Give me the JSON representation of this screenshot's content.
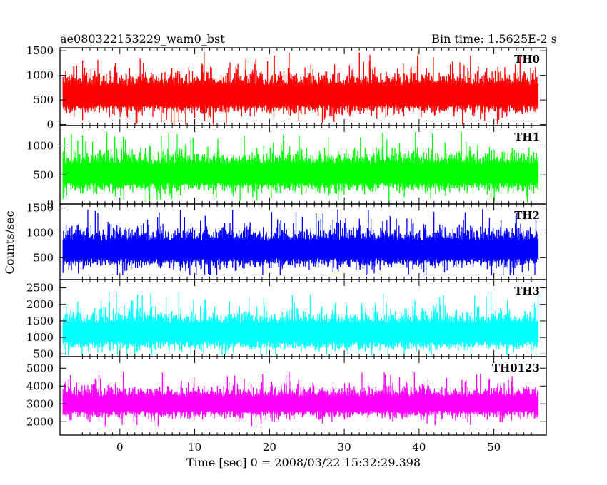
{
  "header": {
    "title": "ae080322153229_wam0_bst",
    "bin_time": "Bin time: 1.5625E-2 s"
  },
  "chart_data": {
    "type": "line",
    "xlabel": "Time [sec] 0 = 2008/03/22 15:32:29.398",
    "ylabel": "Counts/sec",
    "xlim": [
      -8,
      57
    ],
    "xticks": [
      0,
      10,
      20,
      30,
      40,
      50
    ],
    "x_range_data": [
      -7.6,
      55.9
    ],
    "bin_time_s": 0.015625,
    "panels": [
      {
        "name": "TH0",
        "color": "#ff0000",
        "ylim": [
          -20,
          1560
        ],
        "yticks": [
          0,
          500,
          1000,
          1500
        ],
        "mean": 620,
        "spread": 330,
        "min": 0,
        "max": 1560
      },
      {
        "name": "TH1",
        "color": "#00ff00",
        "ylim": [
          0,
          1350
        ],
        "yticks": [
          0,
          500,
          1000
        ],
        "mean": 540,
        "spread": 260,
        "min": 20,
        "max": 1350
      },
      {
        "name": "TH2",
        "color": "#0000ff",
        "ylim": [
          60,
          1580
        ],
        "yticks": [
          500,
          1000,
          1500
        ],
        "mean": 680,
        "spread": 300,
        "min": 150,
        "max": 1580
      },
      {
        "name": "TH3",
        "color": "#00ffff",
        "ylim": [
          420,
          2750
        ],
        "yticks": [
          500,
          1000,
          1500,
          2000,
          2500
        ],
        "mean": 1180,
        "spread": 450,
        "min": 460,
        "max": 2750
      },
      {
        "name": "TH0123",
        "color": "#ff00ff",
        "ylim": [
          1250,
          5650
        ],
        "yticks": [
          2000,
          3000,
          4000,
          5000
        ],
        "mean": 3050,
        "spread": 650,
        "min": 1500,
        "max": 5600
      }
    ]
  }
}
